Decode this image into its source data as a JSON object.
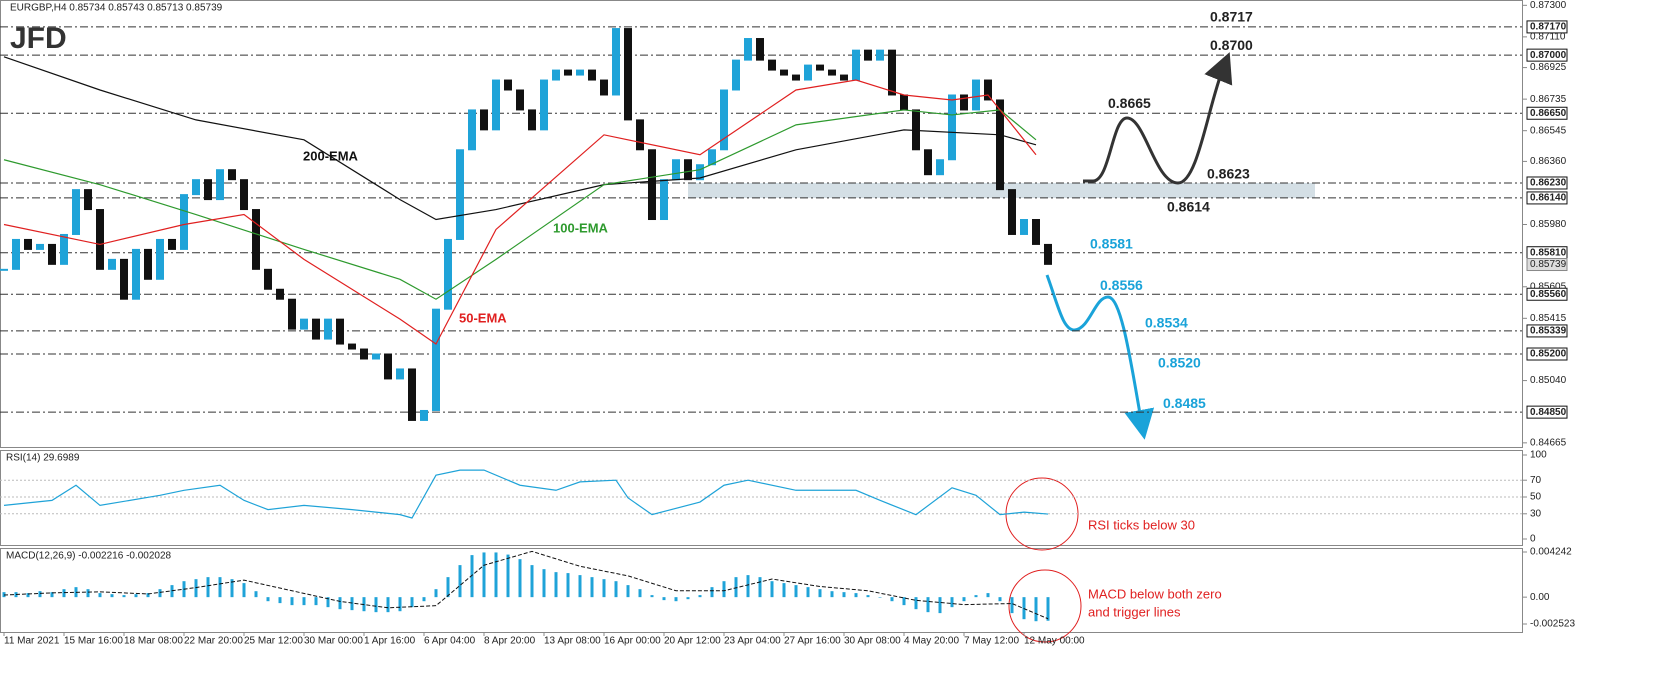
{
  "chart_data": [
    {
      "type": "candlestick",
      "title": "EURGBP,H4  0.85734 0.85743 0.85713 0.85739",
      "logo": "JFD",
      "up_color": "#1fa3d8",
      "down_color": "#111111",
      "closes": [
        0.8571,
        0.8589,
        0.8583,
        0.8586,
        0.8574,
        0.8592,
        0.8619,
        0.8607,
        0.8571,
        0.8577,
        0.8553,
        0.8583,
        0.8565,
        0.8589,
        0.8583,
        0.8616,
        0.8625,
        0.8613,
        0.8631,
        0.8625,
        0.8607,
        0.8571,
        0.8559,
        0.8553,
        0.8535,
        0.8541,
        0.8529,
        0.8541,
        0.8526,
        0.8523,
        0.8517,
        0.852,
        0.8505,
        0.8511,
        0.848,
        0.8486,
        0.8547,
        0.8589,
        0.8643,
        0.8667,
        0.8655,
        0.8685,
        0.8679,
        0.8667,
        0.8655,
        0.8685,
        0.8691,
        0.8688,
        0.8691,
        0.8685,
        0.8676,
        0.8716,
        0.8661,
        0.8643,
        0.8601,
        0.8625,
        0.8637,
        0.8625,
        0.8634,
        0.8643,
        0.8679,
        0.8697,
        0.871,
        0.8697,
        0.8691,
        0.8688,
        0.8685,
        0.8694,
        0.8691,
        0.8688,
        0.8685,
        0.8703,
        0.8697,
        0.8703,
        0.8676,
        0.8667,
        0.8643,
        0.8628,
        0.8637,
        0.8676,
        0.8667,
        0.8685,
        0.8673,
        0.8619,
        0.8592,
        0.8601,
        0.8586,
        0.8574
      ],
      "x_labels": [
        "11 Mar 2021",
        "15 Mar 16:00",
        "18 Mar 08:00",
        "22 Mar 20:00",
        "25 Mar 12:00",
        "30 Mar 00:00",
        "1 Apr 16:00",
        "6 Apr 04:00",
        "8 Apr 20:00",
        "13 Apr 08:00",
        "16 Apr 00:00",
        "20 Apr 12:00",
        "23 Apr 04:00",
        "27 Apr 16:00",
        "30 Apr 08:00",
        "4 May 20:00",
        "7 May 12:00",
        "12 May 00:00"
      ],
      "series": [
        {
          "name": "200-EMA",
          "color": "#111111",
          "x": [
            0,
            8,
            16,
            25,
            33,
            36,
            41,
            50,
            58,
            66,
            75,
            83,
            86
          ],
          "values": [
            0.8699,
            0.8679,
            0.8661,
            0.8649,
            0.8613,
            0.8601,
            0.8607,
            0.8622,
            0.8626,
            0.8643,
            0.8655,
            0.8652,
            0.8646
          ]
        },
        {
          "name": "100-EMA",
          "color": "#2e9a2e",
          "x": [
            0,
            8,
            16,
            25,
            33,
            36,
            41,
            50,
            58,
            66,
            75,
            79,
            83,
            86
          ],
          "values": [
            0.8637,
            0.8622,
            0.8604,
            0.8583,
            0.8565,
            0.8553,
            0.8577,
            0.8622,
            0.8631,
            0.8658,
            0.8667,
            0.8664,
            0.8667,
            0.8649
          ]
        },
        {
          "name": "50-EMA",
          "color": "#e02020",
          "x": [
            0,
            8,
            15,
            20,
            25,
            33,
            36,
            41,
            50,
            58,
            66,
            71,
            75,
            79,
            82,
            86
          ],
          "values": [
            0.8598,
            0.8586,
            0.8598,
            0.8604,
            0.8577,
            0.8541,
            0.8526,
            0.8595,
            0.8652,
            0.864,
            0.8679,
            0.8685,
            0.8676,
            0.8673,
            0.8676,
            0.864
          ]
        }
      ],
      "ylim": [
        0.8464,
        0.8732
      ],
      "yticks": [
        {
          "value": 0.873,
          "label": "0.87300"
        },
        {
          "value": 0.8711,
          "label": "0.87110"
        },
        {
          "value": 0.86925,
          "label": "0.86925"
        },
        {
          "value": 0.86735,
          "label": "0.86735"
        },
        {
          "value": 0.86545,
          "label": "0.86545"
        },
        {
          "value": 0.8636,
          "label": "0.86360"
        },
        {
          "value": 0.8598,
          "label": "0.85980"
        },
        {
          "value": 0.85605,
          "label": "0.85605"
        },
        {
          "value": 0.85415,
          "label": "0.85415"
        },
        {
          "value": 0.8504,
          "label": "0.85040"
        },
        {
          "value": 0.84665,
          "label": "0.84665"
        }
      ],
      "levels": [
        {
          "value": 0.8717,
          "label": "0.87170",
          "annotation": "0.8717",
          "color": "#222222"
        },
        {
          "value": 0.87,
          "label": "0.87000",
          "annotation": "0.8700",
          "color": "#222222"
        },
        {
          "value": 0.8665,
          "label": "0.86650",
          "annotation": "0.8665",
          "color": "#222222"
        },
        {
          "value": 0.8623,
          "label": "0.86230",
          "annotation": "0.8623",
          "color": "#222222"
        },
        {
          "value": 0.8614,
          "label": "0.86140",
          "annotation": "0.8614",
          "color": "#222222"
        },
        {
          "value": 0.8581,
          "label": "0.85810",
          "annotation": "0.8581",
          "color": "#1aa3d9"
        },
        {
          "value": 0.8556,
          "label": "0.85560",
          "annotation": "0.8556",
          "color": "#1aa3d9"
        },
        {
          "value": 0.85339,
          "label": "0.85339",
          "annotation": "0.8534",
          "color": "#1aa3d9"
        },
        {
          "value": 0.852,
          "label": "0.85200",
          "annotation": "0.8520",
          "color": "#1aa3d9"
        },
        {
          "value": 0.8485,
          "label": "0.84850",
          "annotation": "0.8485",
          "color": "#1aa3d9"
        }
      ],
      "zone": [
        0.8614,
        0.8623
      ],
      "current": {
        "value": 0.85739,
        "label": "0.85739"
      }
    },
    {
      "type": "line",
      "title": "RSI(14) 29.6989",
      "color": "#1fa3d8",
      "x": [
        0,
        4,
        6,
        8,
        13,
        15,
        18,
        20,
        22,
        25,
        29,
        33,
        34,
        36,
        38,
        40,
        43,
        46,
        48,
        51,
        52,
        54,
        58,
        60,
        62,
        66,
        71,
        73,
        76,
        79,
        81,
        83,
        85,
        87
      ],
      "values": [
        40,
        46,
        64,
        40,
        52,
        58,
        64,
        46,
        35,
        40,
        35,
        29,
        25,
        76,
        82,
        82,
        64,
        58,
        68,
        70,
        49,
        29,
        44,
        64,
        70,
        58,
        58,
        46,
        29,
        61,
        52,
        29,
        32,
        29.6989
      ],
      "ylim": [
        0,
        100
      ],
      "yticks": [
        0,
        30,
        50,
        70,
        100
      ],
      "annotation": "RSI ticks below 30"
    },
    {
      "type": "macd",
      "title": "MACD(12,26,9) -0.002216 -0.002028",
      "color": "#1fa3d8",
      "histogram": [
        0.00047,
        0.00047,
        0.00038,
        0.00056,
        0.00047,
        0.00075,
        0.00094,
        0.00075,
        0.00038,
        0.00028,
        0.00019,
        0.00028,
        0.00038,
        0.00075,
        0.00113,
        0.0015,
        0.00169,
        0.00188,
        0.00188,
        0.00169,
        0.00132,
        0.00056,
        -0.00038,
        -0.00056,
        -0.00075,
        -0.00075,
        -0.00075,
        -0.00094,
        -0.00113,
        -0.00122,
        -0.00132,
        -0.00141,
        -0.00141,
        -0.00132,
        -0.00094,
        -0.00038,
        0.00075,
        0.00188,
        0.00301,
        0.00395,
        0.0042,
        0.0042,
        0.004,
        0.00357,
        0.00301,
        0.00263,
        0.00235,
        0.00226,
        0.00207,
        0.00188,
        0.00169,
        0.0015,
        0.00113,
        0.00075,
        0.00019,
        -0.00028,
        -0.00038,
        -0.00019,
        0.00019,
        0.00094,
        0.0015,
        0.00188,
        0.00207,
        0.00188,
        0.0015,
        0.00132,
        0.00113,
        0.00094,
        0.00075,
        0.00056,
        0.00047,
        0.00038,
        0.00019,
        0,
        -0.00038,
        -0.00075,
        -0.00113,
        -0.00141,
        -0.0015,
        -0.00094,
        -0.00038,
        0.00019,
        0.00038,
        -0.00038,
        -0.0015,
        -0.00207,
        -0.00226,
        -0.002216
      ],
      "signal_x": [
        0,
        4,
        8,
        12,
        16,
        20,
        24,
        28,
        32,
        36,
        40,
        44,
        48,
        52,
        56,
        60,
        64,
        68,
        72,
        76,
        80,
        84,
        87
      ],
      "signal": [
        0.0002,
        0.0004,
        0.0005,
        0.0003,
        0.0009,
        0.0016,
        0.0006,
        -0.0004,
        -0.001,
        -0.0008,
        0.003,
        0.0043,
        0.0029,
        0.002,
        0.0006,
        0.0006,
        0.0017,
        0.001,
        0.0006,
        -0.0003,
        -0.0007,
        -0.0006,
        -0.002028
      ],
      "ylim": [
        -0.002523,
        0.004242
      ],
      "yticks": [
        -0.002523,
        {
          "value": 0,
          "label": "0.00"
        },
        0.004242
      ],
      "annotation": [
        "MACD below both zero",
        "and trigger lines"
      ]
    }
  ]
}
